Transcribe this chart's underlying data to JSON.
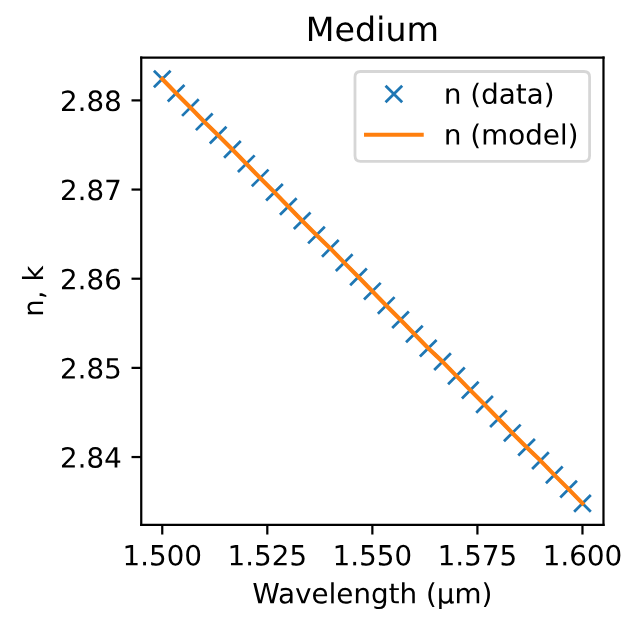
{
  "chart_data": {
    "type": "line",
    "title": "Medium",
    "xlabel": "Wavelength (μm)",
    "ylabel": "n, k",
    "x": [
      1.5,
      1.5033,
      1.5067,
      1.51,
      1.5133,
      1.5167,
      1.52,
      1.5233,
      1.5267,
      1.53,
      1.5333,
      1.5367,
      1.54,
      1.5433,
      1.5467,
      1.55,
      1.5533,
      1.5567,
      1.56,
      1.5633,
      1.5667,
      1.57,
      1.5733,
      1.5767,
      1.58,
      1.5833,
      1.5867,
      1.59,
      1.5933,
      1.5967,
      1.6
    ],
    "series": [
      {
        "name": "n (data)",
        "type": "scatter",
        "marker": "cross",
        "color": "#1f77b4",
        "values": [
          2.8824,
          2.8808,
          2.8792,
          2.8776,
          2.8761,
          2.8745,
          2.8729,
          2.8713,
          2.8697,
          2.8681,
          2.8665,
          2.8649,
          2.8634,
          2.8618,
          2.8602,
          2.8586,
          2.857,
          2.8554,
          2.8538,
          2.8522,
          2.8507,
          2.8491,
          2.8475,
          2.8459,
          2.8443,
          2.8427,
          2.8411,
          2.8396,
          2.838,
          2.8364,
          2.8348
        ]
      },
      {
        "name": "n (model)",
        "line_style": "solid",
        "color": "#ff7f0e",
        "values": [
          2.8824,
          2.8808,
          2.8792,
          2.8776,
          2.8761,
          2.8745,
          2.8729,
          2.8713,
          2.8697,
          2.8681,
          2.8665,
          2.8649,
          2.8634,
          2.8618,
          2.8602,
          2.8586,
          2.857,
          2.8554,
          2.8538,
          2.8522,
          2.8507,
          2.8491,
          2.8475,
          2.8459,
          2.8443,
          2.8427,
          2.8411,
          2.8396,
          2.838,
          2.8364,
          2.8348
        ]
      }
    ],
    "xlim": [
      1.495,
      1.605
    ],
    "ylim": [
      2.8324,
      2.8848
    ],
    "xticks": [
      {
        "value": 1.5,
        "label": "1.500"
      },
      {
        "value": 1.525,
        "label": "1.525"
      },
      {
        "value": 1.55,
        "label": "1.550"
      },
      {
        "value": 1.575,
        "label": "1.575"
      },
      {
        "value": 1.6,
        "label": "1.600"
      }
    ],
    "yticks": [
      {
        "value": 2.84,
        "label": "2.84"
      },
      {
        "value": 2.85,
        "label": "2.85"
      },
      {
        "value": 2.86,
        "label": "2.86"
      },
      {
        "value": 2.87,
        "label": "2.87"
      },
      {
        "value": 2.88,
        "label": "2.88"
      }
    ],
    "legend": "top right",
    "grid": false
  }
}
